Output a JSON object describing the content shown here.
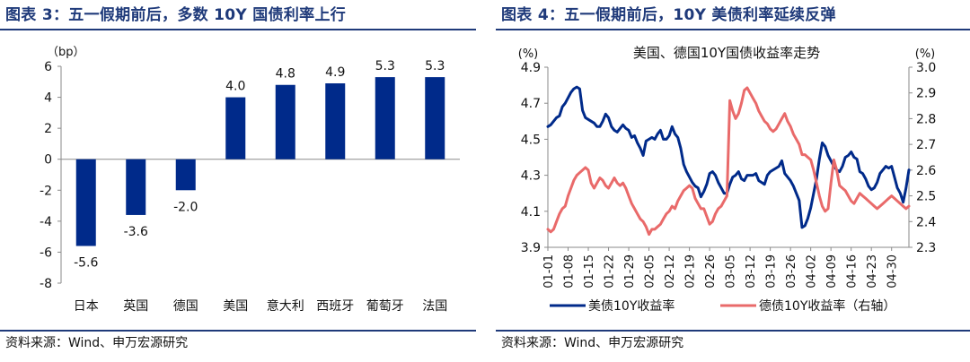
{
  "left_panel": {
    "figure_title": "图表 3：五一假期前后，多数 10Y 国债利率上行",
    "source": "资料来源：Wind、申万宏源研究"
  },
  "right_panel": {
    "figure_title": "图表 4：五一假期前后，10Y 美债利率延续反弹",
    "source": "资料来源：Wind、申万宏源研究"
  },
  "colors": {
    "title": "#1f3a7a",
    "bar": "#002a8a",
    "us_line": "#002a8a",
    "de_line": "#e96a6a",
    "axis": "#8a8a8a"
  },
  "chart_data": [
    {
      "type": "bar",
      "title": "",
      "ylabel": "（bp）",
      "categories": [
        "日本",
        "英国",
        "德国",
        "美国",
        "意大利",
        "西班牙",
        "葡萄牙",
        "法国"
      ],
      "values": [
        -5.6,
        -3.6,
        -2.0,
        4.0,
        4.8,
        4.9,
        5.3,
        5.3
      ],
      "value_labels": [
        "-5.6",
        "-3.6",
        "-2.0",
        "4.0",
        "4.8",
        "4.9",
        "5.3",
        "5.3"
      ],
      "ylim": [
        -8,
        6
      ],
      "yticks": [
        "6",
        "4",
        "2",
        "0",
        "-2",
        "-4",
        "-6",
        "-8"
      ],
      "grid": false,
      "legend": "none"
    },
    {
      "type": "line",
      "title": "美国、德国10Y国债收益率走势",
      "ylabel_left": "(%)",
      "ylabel_right": "(%)",
      "ylim_left": [
        3.9,
        4.9
      ],
      "ylim_right": [
        2.3,
        3.0
      ],
      "yticks_left": [
        "4.9",
        "4.7",
        "4.5",
        "4.3",
        "4.1",
        "3.9"
      ],
      "yticks_right": [
        "3.0",
        "2.9",
        "2.8",
        "2.7",
        "2.6",
        "2.5",
        "2.4",
        "2.3"
      ],
      "xticks": [
        "01-01",
        "01-08",
        "01-15",
        "01-22",
        "01-29",
        "02-05",
        "02-12",
        "02-19",
        "02-26",
        "03-05",
        "03-12",
        "03-19",
        "03-26",
        "04-02",
        "04-09",
        "04-16",
        "04-23",
        "04-30"
      ],
      "x_dates": [
        "01-01",
        "01-02",
        "01-03",
        "01-04",
        "01-05",
        "01-06",
        "01-07",
        "01-08",
        "01-09",
        "01-10",
        "01-11",
        "01-12",
        "01-13",
        "01-14",
        "01-15",
        "01-16",
        "01-17",
        "01-18",
        "01-19",
        "01-20",
        "01-21",
        "01-22",
        "01-23",
        "01-24",
        "01-25",
        "01-26",
        "01-27",
        "01-28",
        "01-29",
        "01-30",
        "01-31",
        "02-01",
        "02-02",
        "02-03",
        "02-04",
        "02-05",
        "02-06",
        "02-07",
        "02-08",
        "02-09",
        "02-10",
        "02-11",
        "02-12",
        "02-13",
        "02-14",
        "02-15",
        "02-16",
        "02-17",
        "02-18",
        "02-19",
        "02-20",
        "02-21",
        "02-22",
        "02-23",
        "02-24",
        "02-25",
        "02-26",
        "02-27",
        "02-28",
        "03-01",
        "03-02",
        "03-03",
        "03-04",
        "03-05",
        "03-06",
        "03-07",
        "03-08",
        "03-09",
        "03-10",
        "03-11",
        "03-12",
        "03-13",
        "03-14",
        "03-15",
        "03-16",
        "03-17",
        "03-18",
        "03-19",
        "03-20",
        "03-21",
        "03-22",
        "03-23",
        "03-24",
        "03-25",
        "03-26",
        "03-27",
        "03-28",
        "03-29",
        "03-30",
        "03-31",
        "04-01",
        "04-02",
        "04-03",
        "04-04",
        "04-05",
        "04-06",
        "04-07",
        "04-08",
        "04-09",
        "04-10",
        "04-11",
        "04-12",
        "04-13",
        "04-14",
        "04-15",
        "04-16",
        "04-17",
        "04-18",
        "04-19",
        "04-20",
        "04-21",
        "04-22",
        "04-23",
        "04-24",
        "04-25",
        "04-26",
        "04-27",
        "04-28",
        "04-29",
        "04-30",
        "05-01",
        "05-02",
        "05-03",
        "05-04",
        "05-05",
        "05-06"
      ],
      "series": [
        {
          "name": "美债10Y收益率",
          "axis": "left",
          "values": [
            4.57,
            4.58,
            4.6,
            4.62,
            4.63,
            4.68,
            4.7,
            4.73,
            4.76,
            4.78,
            4.79,
            4.78,
            4.66,
            4.62,
            4.61,
            4.6,
            4.59,
            4.57,
            4.57,
            4.6,
            4.64,
            4.62,
            4.57,
            4.55,
            4.54,
            4.56,
            4.58,
            4.56,
            4.55,
            4.51,
            4.52,
            4.48,
            4.45,
            4.41,
            4.49,
            4.5,
            4.51,
            4.5,
            4.53,
            4.55,
            4.5,
            4.5,
            4.52,
            4.57,
            4.53,
            4.51,
            4.45,
            4.36,
            4.32,
            4.29,
            4.26,
            4.24,
            4.23,
            4.18,
            4.21,
            4.25,
            4.31,
            4.32,
            4.3,
            4.26,
            4.23,
            4.2,
            4.2,
            4.25,
            4.29,
            4.3,
            4.32,
            4.28,
            4.27,
            4.3,
            4.3,
            4.3,
            4.31,
            4.27,
            4.26,
            4.25,
            4.3,
            4.32,
            4.33,
            4.34,
            4.35,
            4.38,
            4.31,
            4.29,
            4.27,
            4.24,
            4.2,
            4.16,
            4.01,
            4.02,
            4.06,
            4.12,
            4.2,
            4.28,
            4.39,
            4.48,
            4.46,
            4.41,
            4.38,
            4.35,
            4.33,
            4.32,
            4.35,
            4.4,
            4.41,
            4.43,
            4.4,
            4.39,
            4.32,
            4.31,
            4.28,
            4.24,
            4.22,
            4.23,
            4.26,
            4.31,
            4.33,
            4.35,
            4.34,
            4.35,
            4.29,
            4.23,
            4.2,
            4.15,
            4.23,
            4.33
          ]
        },
        {
          "name": "德债10Y收益率（右轴）",
          "axis": "right",
          "values": [
            2.37,
            2.36,
            2.37,
            2.4,
            2.43,
            2.45,
            2.46,
            2.5,
            2.53,
            2.56,
            2.58,
            2.59,
            2.6,
            2.61,
            2.6,
            2.55,
            2.53,
            2.55,
            2.57,
            2.56,
            2.54,
            2.53,
            2.55,
            2.57,
            2.55,
            2.54,
            2.55,
            2.53,
            2.5,
            2.47,
            2.45,
            2.43,
            2.41,
            2.4,
            2.38,
            2.35,
            2.37,
            2.37,
            2.38,
            2.39,
            2.41,
            2.43,
            2.44,
            2.46,
            2.45,
            2.48,
            2.5,
            2.52,
            2.53,
            2.54,
            2.53,
            2.49,
            2.47,
            2.45,
            2.45,
            2.42,
            2.39,
            2.4,
            2.43,
            2.45,
            2.46,
            2.48,
            2.5,
            2.87,
            2.83,
            2.8,
            2.82,
            2.86,
            2.91,
            2.92,
            2.9,
            2.88,
            2.86,
            2.83,
            2.81,
            2.79,
            2.78,
            2.76,
            2.75,
            2.76,
            2.78,
            2.8,
            2.82,
            2.79,
            2.77,
            2.74,
            2.72,
            2.7,
            2.66,
            2.66,
            2.65,
            2.64,
            2.6,
            2.55,
            2.5,
            2.46,
            2.44,
            2.45,
            2.55,
            2.64,
            2.6,
            2.54,
            2.53,
            2.52,
            2.5,
            2.48,
            2.47,
            2.49,
            2.51,
            2.5,
            2.49,
            2.48,
            2.47,
            2.46,
            2.45,
            2.46,
            2.47,
            2.48,
            2.49,
            2.5,
            2.49,
            2.48,
            2.47,
            2.46,
            2.45,
            2.46
          ]
        }
      ],
      "legend": "bottom"
    }
  ]
}
